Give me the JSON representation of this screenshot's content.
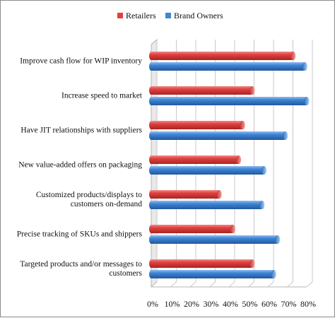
{
  "chart_data": {
    "type": "bar",
    "orientation": "horizontal",
    "style": "3d-cylinder",
    "title": "",
    "xlabel": "",
    "ylabel": "",
    "xlim": [
      0,
      80
    ],
    "x_ticks": [
      "0%",
      "10%",
      "20%",
      "30%",
      "40%",
      "50%",
      "60%",
      "70%",
      "80%"
    ],
    "grid": true,
    "legend_placement": "top",
    "categories": [
      [
        "Improve cash flow for WIP inventory"
      ],
      [
        "Increase speed to market"
      ],
      [
        "Have JIT relationships with suppliers"
      ],
      [
        "New value-added offers on packaging"
      ],
      [
        "Customized products/displays to",
        "customers on-demand"
      ],
      [
        "Precise tracking of SKUs and shippers"
      ],
      [
        "Targeted products and/or messages to",
        "customers"
      ]
    ],
    "series": [
      {
        "name": "Retailers",
        "color": "#e0413f",
        "values": [
          73,
          52,
          47,
          45,
          35,
          42,
          52
        ]
      },
      {
        "name": "Brand Owners",
        "color": "#3f86d6",
        "values": [
          79,
          80,
          69,
          58,
          57,
          65,
          63
        ]
      }
    ]
  }
}
